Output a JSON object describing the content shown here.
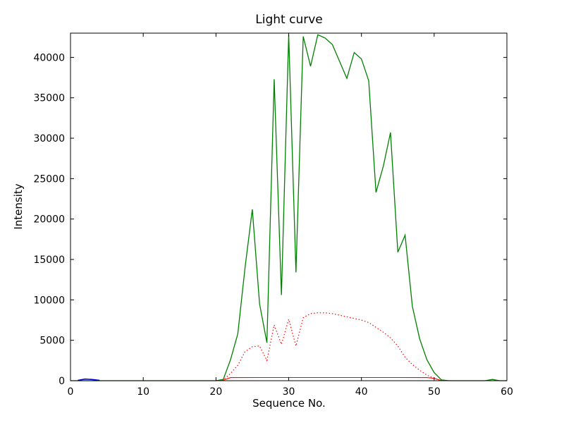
{
  "title": "Light curve",
  "chart_data": {
    "type": "line",
    "title": "Light curve",
    "xlabel": "Sequence No.",
    "ylabel": "Intensity",
    "xlim": [
      0,
      60
    ],
    "ylim": [
      0,
      43000
    ],
    "xticks": [
      0,
      10,
      20,
      30,
      40,
      50,
      60
    ],
    "yticks": [
      0,
      5000,
      10000,
      15000,
      20000,
      25000,
      30000,
      35000,
      40000
    ],
    "grid": false,
    "legend_position": "none",
    "axis_color": "#000000",
    "background_color": "#ffffff",
    "series": [
      {
        "name": "green-solid",
        "color": "#008000",
        "style": "solid",
        "width": 1.3,
        "points": [
          [
            0,
            0
          ],
          [
            1,
            0
          ],
          [
            2,
            0
          ],
          [
            3,
            0
          ],
          [
            4,
            0
          ],
          [
            5,
            0
          ],
          [
            6,
            0
          ],
          [
            7,
            0
          ],
          [
            8,
            0
          ],
          [
            9,
            0
          ],
          [
            10,
            0
          ],
          [
            11,
            0
          ],
          [
            12,
            0
          ],
          [
            13,
            0
          ],
          [
            14,
            0
          ],
          [
            15,
            0
          ],
          [
            16,
            0
          ],
          [
            17,
            0
          ],
          [
            18,
            0
          ],
          [
            19,
            0
          ],
          [
            20,
            0
          ],
          [
            21,
            150
          ],
          [
            22,
            2600
          ],
          [
            23,
            5800
          ],
          [
            24,
            14000
          ],
          [
            25,
            21200
          ],
          [
            26,
            9500
          ],
          [
            27,
            4700
          ],
          [
            28,
            37300
          ],
          [
            29,
            10600
          ],
          [
            30,
            42800
          ],
          [
            31,
            13400
          ],
          [
            32,
            42600
          ],
          [
            33,
            38900
          ],
          [
            34,
            42800
          ],
          [
            35,
            42400
          ],
          [
            36,
            41600
          ],
          [
            37,
            39500
          ],
          [
            38,
            37400
          ],
          [
            39,
            40600
          ],
          [
            40,
            39800
          ],
          [
            41,
            37100
          ],
          [
            42,
            23300
          ],
          [
            43,
            26500
          ],
          [
            44,
            30700
          ],
          [
            45,
            15900
          ],
          [
            46,
            18000
          ],
          [
            47,
            9200
          ],
          [
            48,
            5200
          ],
          [
            49,
            2600
          ],
          [
            50,
            1000
          ],
          [
            51,
            100
          ],
          [
            52,
            0
          ],
          [
            53,
            0
          ],
          [
            54,
            0
          ],
          [
            55,
            0
          ],
          [
            56,
            0
          ],
          [
            57,
            0
          ],
          [
            58,
            160
          ],
          [
            59,
            0
          ],
          [
            60,
            0
          ]
        ]
      },
      {
        "name": "red-dotted",
        "color": "#ff0000",
        "style": "dotted",
        "width": 1.2,
        "points": [
          [
            20,
            0
          ],
          [
            21,
            100
          ],
          [
            22,
            900
          ],
          [
            23,
            1900
          ],
          [
            24,
            3600
          ],
          [
            25,
            4200
          ],
          [
            26,
            4300
          ],
          [
            27,
            2500
          ],
          [
            28,
            6900
          ],
          [
            29,
            4500
          ],
          [
            30,
            7600
          ],
          [
            31,
            4300
          ],
          [
            32,
            7800
          ],
          [
            33,
            8300
          ],
          [
            34,
            8400
          ],
          [
            35,
            8400
          ],
          [
            36,
            8300
          ],
          [
            37,
            8100
          ],
          [
            38,
            7900
          ],
          [
            39,
            7700
          ],
          [
            40,
            7500
          ],
          [
            41,
            7200
          ],
          [
            42,
            6600
          ],
          [
            43,
            6000
          ],
          [
            44,
            5300
          ],
          [
            45,
            4300
          ],
          [
            46,
            2900
          ],
          [
            47,
            2000
          ],
          [
            48,
            1300
          ],
          [
            49,
            700
          ],
          [
            50,
            300
          ],
          [
            51,
            0
          ]
        ]
      },
      {
        "name": "red-solid",
        "color": "#ff0000",
        "style": "solid",
        "width": 1.1,
        "points": [
          [
            21,
            50
          ],
          [
            22,
            380
          ],
          [
            26,
            390
          ],
          [
            30,
            390
          ],
          [
            35,
            390
          ],
          [
            40,
            390
          ],
          [
            45,
            390
          ],
          [
            49,
            380
          ],
          [
            50,
            300
          ],
          [
            51,
            0
          ]
        ]
      },
      {
        "name": "blue-solid",
        "color": "#0000cc",
        "style": "solid",
        "width": 1.6,
        "points": [
          [
            1,
            40
          ],
          [
            2,
            200
          ],
          [
            3,
            150
          ],
          [
            4,
            40
          ]
        ]
      }
    ]
  }
}
